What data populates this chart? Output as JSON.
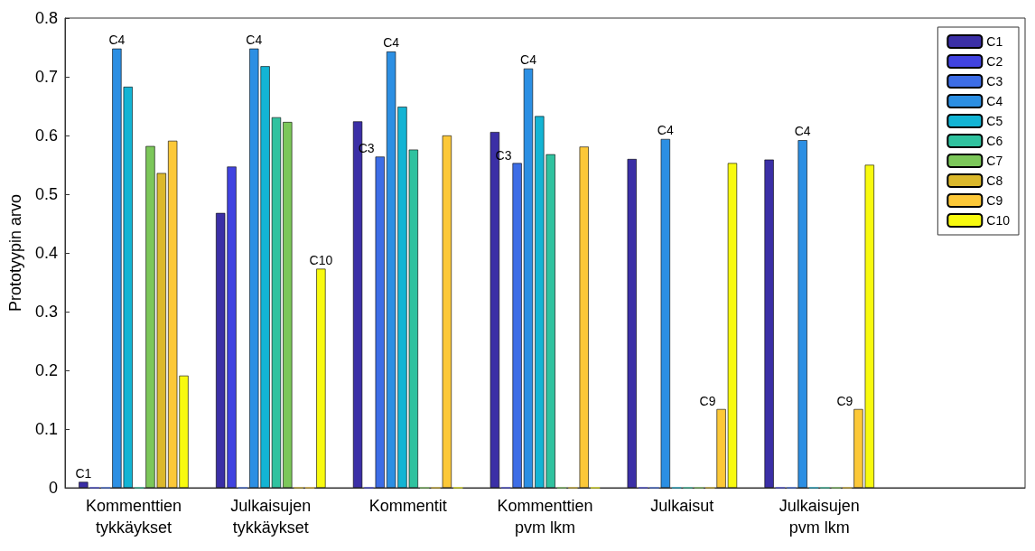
{
  "chart_data": {
    "type": "bar",
    "ylabel": "Prototyypin arvo",
    "categories": [
      "Kommenttien\ntykkäykset",
      "Julkaisujen\ntykkäykset",
      "Kommentit",
      "Kommenttien\npvm lkm",
      "Julkaisut",
      "Julkaisujen\npvm lkm",
      null
    ],
    "series": [
      {
        "name": "C1",
        "color": "#3b2fa6",
        "values": [
          0.01,
          0.468,
          0.624,
          0.606,
          0.56,
          0.559,
          null
        ],
        "value_labels": [
          "C1",
          null,
          null,
          null,
          null,
          null,
          null
        ]
      },
      {
        "name": "C2",
        "color": "#4143e0",
        "values": [
          0,
          0.547,
          0,
          0,
          0,
          0,
          null
        ]
      },
      {
        "name": "C3",
        "color": "#3d6de6",
        "values": [
          0,
          0,
          0.564,
          0.553,
          0,
          0,
          null
        ],
        "value_labels": [
          null,
          null,
          "C3",
          "C3",
          null,
          null,
          null
        ]
      },
      {
        "name": "C4",
        "color": "#2c8fe3",
        "values": [
          0.748,
          0.748,
          0.743,
          0.714,
          0.594,
          0.592,
          null
        ],
        "value_labels": [
          "C4",
          "C4",
          "C4",
          "C4",
          "C4",
          "C4",
          null
        ]
      },
      {
        "name": "C5",
        "color": "#13b4d4",
        "values": [
          0.683,
          0.718,
          0.649,
          0.633,
          0,
          0,
          null
        ]
      },
      {
        "name": "C6",
        "color": "#30c29f",
        "values": [
          0,
          0.631,
          0.576,
          0.568,
          0,
          0,
          null
        ]
      },
      {
        "name": "C7",
        "color": "#7cc75a",
        "values": [
          0.582,
          0.623,
          0,
          0,
          0,
          0,
          null
        ]
      },
      {
        "name": "C8",
        "color": "#dbb82c",
        "values": [
          0.536,
          0,
          0,
          0,
          0,
          0,
          null
        ]
      },
      {
        "name": "C9",
        "color": "#fcc838",
        "values": [
          0.591,
          0,
          0.6,
          0.581,
          0.134,
          0.134,
          null
        ],
        "value_labels": [
          null,
          null,
          null,
          null,
          "C9",
          "C9",
          null
        ]
      },
      {
        "name": "C10",
        "color": "#f8fa0f",
        "values": [
          0.191,
          0.373,
          0,
          0,
          0.553,
          0.55,
          null
        ],
        "value_labels": [
          null,
          "C10",
          null,
          null,
          null,
          null,
          null
        ]
      }
    ],
    "ylim": [
      0,
      0.8
    ],
    "yticks": [
      0,
      0.1,
      0.2,
      0.3,
      0.4,
      0.5,
      0.6,
      0.7,
      0.8
    ],
    "grid": false,
    "legend": "top right"
  }
}
